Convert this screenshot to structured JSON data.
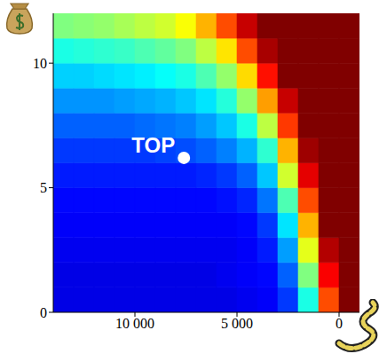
{
  "chart_data": {
    "type": "heatmap",
    "xlim": [
      14000,
      -1000
    ],
    "xticks": [
      {
        "value": 10000,
        "label": "10 000"
      },
      {
        "value": 5000,
        "label": "5 000"
      },
      0
    ],
    "ylim": [
      0,
      12
    ],
    "yticks": [
      0,
      5,
      10
    ],
    "grid": false,
    "color_range": [
      0,
      1
    ],
    "cells": {
      "x": [
        13500,
        12500,
        11500,
        10500,
        9500,
        8500,
        7500,
        6500,
        5500,
        4500,
        3500,
        2500,
        1500,
        500,
        -500
      ],
      "y": [
        0.5,
        1.5,
        2.5,
        3.5,
        4.5,
        5.5,
        6.5,
        7.5,
        8.5,
        9.5,
        10.5,
        11.5
      ],
      "values": [
        [
          0.1,
          0.1,
          0.1,
          0.1,
          0.1,
          0.1,
          0.1,
          0.1,
          0.1,
          0.11,
          0.12,
          0.18,
          0.4,
          0.8,
          1
        ],
        [
          0.1,
          0.1,
          0.1,
          0.1,
          0.1,
          0.1,
          0.1,
          0.1,
          0.11,
          0.12,
          0.13,
          0.22,
          0.5,
          0.88,
          1
        ],
        [
          0.11,
          0.11,
          0.11,
          0.11,
          0.11,
          0.11,
          0.11,
          0.11,
          0.11,
          0.12,
          0.15,
          0.28,
          0.6,
          0.95,
          1
        ],
        [
          0.12,
          0.12,
          0.12,
          0.12,
          0.12,
          0.12,
          0.12,
          0.12,
          0.12,
          0.13,
          0.18,
          0.35,
          0.7,
          1,
          1
        ],
        [
          0.13,
          0.13,
          0.13,
          0.13,
          0.13,
          0.13,
          0.13,
          0.13,
          0.14,
          0.16,
          0.24,
          0.45,
          0.8,
          1,
          1
        ],
        [
          0.15,
          0.15,
          0.15,
          0.15,
          0.15,
          0.15,
          0.15,
          0.16,
          0.18,
          0.22,
          0.32,
          0.58,
          0.9,
          1,
          1
        ],
        [
          0.18,
          0.18,
          0.18,
          0.18,
          0.18,
          0.19,
          0.2,
          0.22,
          0.25,
          0.3,
          0.42,
          0.7,
          0.97,
          1,
          1
        ],
        [
          0.22,
          0.22,
          0.22,
          0.22,
          0.23,
          0.24,
          0.25,
          0.28,
          0.32,
          0.4,
          0.56,
          0.82,
          1,
          1,
          1
        ],
        [
          0.27,
          0.27,
          0.27,
          0.28,
          0.29,
          0.3,
          0.32,
          0.35,
          0.41,
          0.52,
          0.72,
          0.93,
          1,
          1,
          1
        ],
        [
          0.33,
          0.33,
          0.34,
          0.35,
          0.36,
          0.38,
          0.4,
          0.45,
          0.52,
          0.66,
          0.86,
          1,
          1,
          1,
          1
        ],
        [
          0.4,
          0.41,
          0.42,
          0.43,
          0.45,
          0.47,
          0.5,
          0.56,
          0.65,
          0.8,
          0.96,
          1,
          1,
          1,
          1
        ],
        [
          0.5,
          0.51,
          0.52,
          0.54,
          0.56,
          0.58,
          0.62,
          0.7,
          0.8,
          0.93,
          1,
          1,
          1,
          1,
          1
        ]
      ]
    },
    "points": [
      {
        "x": 7600,
        "y": 6.2,
        "label": "TOP",
        "color": "#ffffff"
      }
    ]
  }
}
